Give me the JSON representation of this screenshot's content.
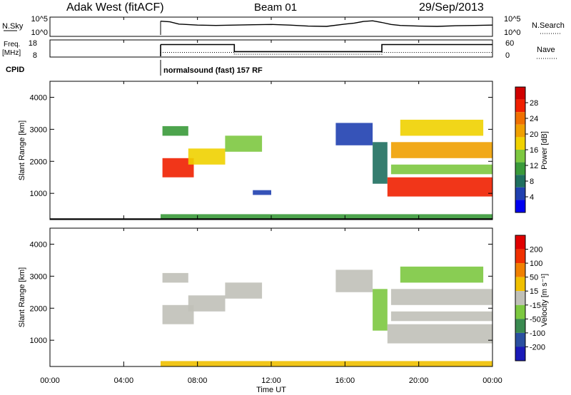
{
  "header": {
    "station": "Adak West (fitACF)",
    "beam": "Beam 01",
    "date": "29/Sep/2013"
  },
  "chart_data": [
    {
      "type": "line",
      "panel": "noise",
      "left_label": "N.Sky",
      "right_label": "N.Search",
      "left_ticks": [
        "10^5",
        "10^0"
      ],
      "right_ticks": [
        "10^5",
        "10^0"
      ],
      "x_hours": [
        6.0,
        6.5,
        7,
        8,
        9,
        10,
        11,
        12,
        13,
        14,
        15,
        16,
        16.5,
        17,
        17.5,
        18,
        18.5,
        19,
        20,
        21,
        22,
        23,
        24
      ],
      "values_log10": [
        4.2,
        4.0,
        3.3,
        3.0,
        2.9,
        3.0,
        3.1,
        3.2,
        3.0,
        2.7,
        2.6,
        3.3,
        3.6,
        4.1,
        4.3,
        3.8,
        3.2,
        2.9,
        2.7,
        2.6,
        2.8,
        2.9,
        3.0
      ],
      "ylim": [
        0,
        5
      ]
    },
    {
      "type": "line",
      "panel": "frequency",
      "left_label": "Freq.",
      "left_unit": "[MHz]",
      "right_label": "Nave",
      "left_ticks": [
        "18",
        "8"
      ],
      "right_ticks": [
        "60",
        "0"
      ],
      "freq_x_hours": [
        6,
        10,
        10,
        18,
        18,
        24
      ],
      "freq_values_mhz": [
        15.5,
        15.5,
        11.0,
        11.0,
        15.5,
        15.5
      ],
      "freq_ylim": [
        8,
        18
      ],
      "nave_x_hours": [
        6,
        10,
        10,
        18,
        18,
        24
      ],
      "nave_values": [
        15,
        15,
        8,
        8,
        15,
        15
      ],
      "nave_ylim": [
        0,
        60
      ]
    },
    {
      "type": "table",
      "panel": "cpid",
      "label": "CPID",
      "start_hour": 6,
      "text": "normalsound (fast) 157 RF"
    },
    {
      "type": "heatmap",
      "panel": "power",
      "ylabel": "Slant Range [km]",
      "y_ticks": [
        "4000",
        "3000",
        "2000",
        "1000"
      ],
      "ylim": [
        180,
        4500
      ],
      "xlim": [
        0,
        24
      ],
      "colorbar_label": "Power [dB]",
      "colorbar_ticks": [
        "28",
        "24",
        "20",
        "16",
        "12",
        "8",
        "4"
      ],
      "colors": [
        "#0000f0",
        "#2040b0",
        "#1f6f5f",
        "#3a9a3a",
        "#7dc840",
        "#f0d200",
        "#f0a000",
        "#f07000",
        "#f02000",
        "#d00000"
      ],
      "regions": [
        {
          "t0": 6.1,
          "t1": 7.8,
          "r0": 1500,
          "r1": 2100,
          "level": 8
        },
        {
          "t0": 6.1,
          "t1": 7.5,
          "r0": 2800,
          "r1": 3100,
          "level": 3
        },
        {
          "t0": 7.5,
          "t1": 9.5,
          "r0": 1900,
          "r1": 2400,
          "level": 5
        },
        {
          "t0": 9.5,
          "t1": 11.5,
          "r0": 2300,
          "r1": 2800,
          "level": 4
        },
        {
          "t0": 11.0,
          "t1": 12.0,
          "r0": 950,
          "r1": 1100,
          "level": 1
        },
        {
          "t0": 15.5,
          "t1": 17.5,
          "r0": 2500,
          "r1": 3200,
          "level": 1
        },
        {
          "t0": 17.5,
          "t1": 18.3,
          "r0": 1300,
          "r1": 2600,
          "level": 2
        },
        {
          "t0": 18.3,
          "t1": 24.0,
          "r0": 900,
          "r1": 1500,
          "level": 8
        },
        {
          "t0": 18.5,
          "t1": 24.0,
          "r0": 1600,
          "r1": 1900,
          "level": 4
        },
        {
          "t0": 18.5,
          "t1": 24.0,
          "r0": 2100,
          "r1": 2600,
          "level": 6
        },
        {
          "t0": 19.0,
          "t1": 23.5,
          "r0": 2800,
          "r1": 3300,
          "level": 5
        },
        {
          "t0": 6.0,
          "t1": 24.0,
          "r0": 180,
          "r1": 350,
          "level": 3
        }
      ]
    },
    {
      "type": "heatmap",
      "panel": "velocity",
      "ylabel": "Slant Range [km]",
      "y_ticks": [
        "4000",
        "3000",
        "2000",
        "1000"
      ],
      "ylim": [
        180,
        4500
      ],
      "xlim": [
        0,
        24
      ],
      "colorbar_label": "Velocity [m s⁻¹]",
      "colorbar_ticks": [
        "200",
        "100",
        "50",
        "15",
        "-15",
        "-50",
        "-100",
        "-200"
      ],
      "colors": [
        "#1a1ab8",
        "#2a4fa0",
        "#3a8a50",
        "#7cc840",
        "#c0c0b8",
        "#f0c000",
        "#f08000",
        "#f03000",
        "#e00000"
      ],
      "regions": [
        {
          "t0": 6.1,
          "t1": 7.8,
          "r0": 1500,
          "r1": 2100,
          "level": 4
        },
        {
          "t0": 6.1,
          "t1": 7.5,
          "r0": 2800,
          "r1": 3100,
          "level": 4
        },
        {
          "t0": 7.5,
          "t1": 9.5,
          "r0": 1900,
          "r1": 2400,
          "level": 4
        },
        {
          "t0": 9.5,
          "t1": 11.5,
          "r0": 2300,
          "r1": 2800,
          "level": 4
        },
        {
          "t0": 15.5,
          "t1": 17.5,
          "r0": 2500,
          "r1": 3200,
          "level": 4
        },
        {
          "t0": 17.5,
          "t1": 18.3,
          "r0": 1300,
          "r1": 2600,
          "level": 3
        },
        {
          "t0": 18.3,
          "t1": 24.0,
          "r0": 900,
          "r1": 1500,
          "level": 4
        },
        {
          "t0": 18.5,
          "t1": 24.0,
          "r0": 1600,
          "r1": 1900,
          "level": 4
        },
        {
          "t0": 18.5,
          "t1": 24.0,
          "r0": 2100,
          "r1": 2600,
          "level": 4
        },
        {
          "t0": 19.0,
          "t1": 23.5,
          "r0": 2800,
          "r1": 3300,
          "level": 3
        },
        {
          "t0": 6.0,
          "t1": 24.0,
          "r0": 180,
          "r1": 350,
          "level": 5
        }
      ]
    }
  ],
  "time_axis": {
    "label": "Time UT",
    "ticks": [
      "00:00",
      "04:00",
      "08:00",
      "12:00",
      "16:00",
      "20:00",
      "00:00"
    ]
  }
}
